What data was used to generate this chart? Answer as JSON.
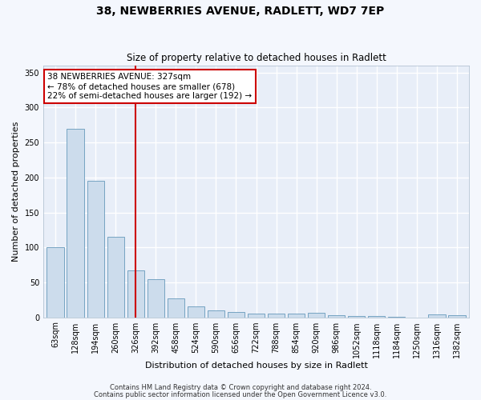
{
  "title1": "38, NEWBERRIES AVENUE, RADLETT, WD7 7EP",
  "title2": "Size of property relative to detached houses in Radlett",
  "xlabel": "Distribution of detached houses by size in Radlett",
  "ylabel": "Number of detached properties",
  "bar_color": "#ccdcec",
  "bar_edge_color": "#6699bb",
  "background_color": "#e8eef8",
  "fig_color": "#f4f7fd",
  "grid_color": "#ffffff",
  "vline_color": "#cc0000",
  "categories": [
    "63sqm",
    "128sqm",
    "194sqm",
    "260sqm",
    "326sqm",
    "392sqm",
    "458sqm",
    "524sqm",
    "590sqm",
    "656sqm",
    "722sqm",
    "788sqm",
    "854sqm",
    "920sqm",
    "986sqm",
    "1052sqm",
    "1118sqm",
    "1184sqm",
    "1250sqm",
    "1316sqm",
    "1382sqm"
  ],
  "values": [
    100,
    270,
    195,
    115,
    67,
    54,
    27,
    16,
    10,
    8,
    5,
    5,
    5,
    6,
    3,
    2,
    2,
    1,
    0,
    4,
    3
  ],
  "annotation_line1": "38 NEWBERRIES AVENUE: 327sqm",
  "annotation_line2": "← 78% of detached houses are smaller (678)",
  "annotation_line3": "22% of semi-detached houses are larger (192) →",
  "annotation_box_color": "#ffffff",
  "annotation_box_edge": "#cc0000",
  "footer1": "Contains HM Land Registry data © Crown copyright and database right 2024.",
  "footer2": "Contains public sector information licensed under the Open Government Licence v3.0.",
  "ylim": [
    0,
    360
  ],
  "yticks": [
    0,
    50,
    100,
    150,
    200,
    250,
    300,
    350
  ],
  "vline_idx": 4,
  "title1_fontsize": 10,
  "title2_fontsize": 8.5,
  "xlabel_fontsize": 8,
  "ylabel_fontsize": 8,
  "tick_fontsize": 7,
  "annot_fontsize": 7.5,
  "footer_fontsize": 6
}
